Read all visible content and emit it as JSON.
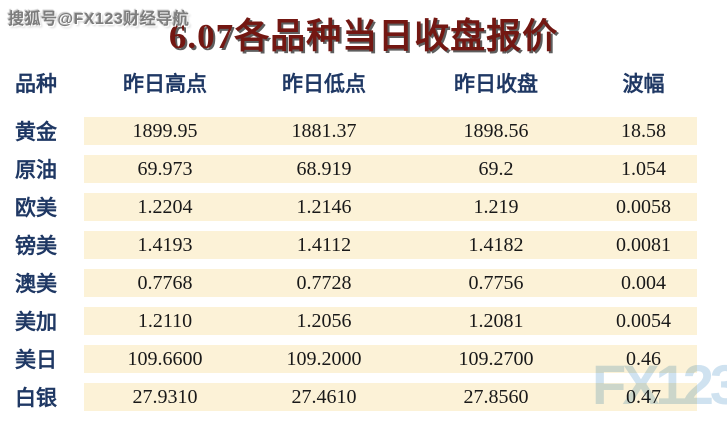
{
  "header": {
    "watermark": "搜狐号@FX123财经导航",
    "title": "6.07各品种当日收盘报价"
  },
  "table": {
    "columns": [
      "品种",
      "昨日高点",
      "昨日低点",
      "昨日收盘",
      "波幅"
    ],
    "rows": [
      {
        "instrument": "黄金",
        "high": "1899.95",
        "low": "1881.37",
        "close": "1898.56",
        "range": "18.58"
      },
      {
        "instrument": "原油",
        "high": "69.973",
        "low": "68.919",
        "close": "69.2",
        "range": "1.054"
      },
      {
        "instrument": "欧美",
        "high": "1.2204",
        "low": "1.2146",
        "close": "1.219",
        "range": "0.0058"
      },
      {
        "instrument": "镑美",
        "high": "1.4193",
        "low": "1.4112",
        "close": "1.4182",
        "range": "0.0081"
      },
      {
        "instrument": "澳美",
        "high": "0.7768",
        "low": "0.7728",
        "close": "0.7756",
        "range": "0.004"
      },
      {
        "instrument": "美加",
        "high": "1.2110",
        "low": "1.2056",
        "close": "1.2081",
        "range": "0.0054"
      },
      {
        "instrument": "美日",
        "high": "109.6600",
        "low": "109.2000",
        "close": "109.2700",
        "range": "0.46"
      },
      {
        "instrument": "白银",
        "high": "27.9310",
        "low": "27.4610",
        "close": "27.8560",
        "range": "0.47"
      }
    ]
  },
  "logo_watermark": "FX123",
  "colors": {
    "title": "#731712",
    "label_navy": "#1f3864",
    "cell_background": "#fcf2d7",
    "logo_blue": "#cfe2f0"
  },
  "chart_data": {
    "type": "table",
    "title": "6.07各品种当日收盘报价",
    "columns": [
      "品种",
      "昨日高点",
      "昨日低点",
      "昨日收盘",
      "波幅"
    ],
    "rows": [
      [
        "黄金",
        "1899.95",
        "1881.37",
        "1898.56",
        "18.58"
      ],
      [
        "原油",
        "69.973",
        "68.919",
        "69.2",
        "1.054"
      ],
      [
        "欧美",
        "1.2204",
        "1.2146",
        "1.219",
        "0.0058"
      ],
      [
        "镑美",
        "1.4193",
        "1.4112",
        "1.4182",
        "0.0081"
      ],
      [
        "澳美",
        "0.7768",
        "0.7728",
        "0.7756",
        "0.004"
      ],
      [
        "美加",
        "1.2110",
        "1.2056",
        "1.2081",
        "0.0054"
      ],
      [
        "美日",
        "109.6600",
        "109.2000",
        "109.2700",
        "0.46"
      ],
      [
        "白银",
        "27.9310",
        "27.4610",
        "27.8560",
        "0.47"
      ]
    ]
  }
}
